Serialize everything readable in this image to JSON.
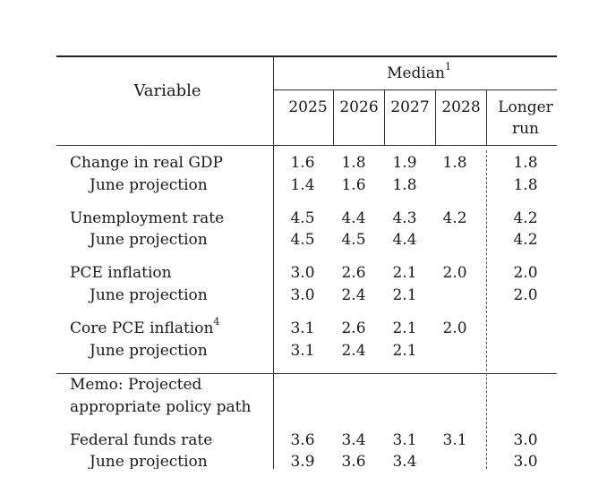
{
  "table": {
    "variable_header": "Variable",
    "median_header": "Median",
    "median_footnote": "1",
    "columns": [
      "2025",
      "2026",
      "2027",
      "2028"
    ],
    "longer_run_line1": "Longer",
    "longer_run_line2": "run",
    "rows": [
      {
        "label": "Change in real GDP",
        "values": [
          "1.6",
          "1.8",
          "1.9",
          "1.8"
        ],
        "longer": "1.8"
      },
      {
        "label": "June projection",
        "values": [
          "1.4",
          "1.6",
          "1.8",
          ""
        ],
        "longer": "1.8"
      },
      {
        "label": "Unemployment rate",
        "values": [
          "4.5",
          "4.4",
          "4.3",
          "4.2"
        ],
        "longer": "4.2"
      },
      {
        "label": "June projection",
        "values": [
          "4.5",
          "4.5",
          "4.4",
          ""
        ],
        "longer": "4.2"
      },
      {
        "label": "PCE inflation",
        "values": [
          "3.0",
          "2.6",
          "2.1",
          "2.0"
        ],
        "longer": "2.0"
      },
      {
        "label": "June projection",
        "values": [
          "3.0",
          "2.4",
          "2.1",
          ""
        ],
        "longer": "2.0"
      },
      {
        "label": "Core PCE inflation",
        "footnote": "4",
        "values": [
          "3.1",
          "2.6",
          "2.1",
          "2.0"
        ],
        "longer": ""
      },
      {
        "label": "June projection",
        "values": [
          "3.1",
          "2.4",
          "2.1",
          ""
        ],
        "longer": ""
      }
    ],
    "memo_line1": "Memo: Projected",
    "memo_line2": "appropriate policy path",
    "memo_rows": [
      {
        "label": "Federal funds rate",
        "values": [
          "3.6",
          "3.4",
          "3.1",
          "3.1"
        ],
        "longer": "3.0"
      },
      {
        "label": "June projection",
        "values": [
          "3.9",
          "3.6",
          "3.4",
          ""
        ],
        "longer": "3.0"
      }
    ]
  }
}
